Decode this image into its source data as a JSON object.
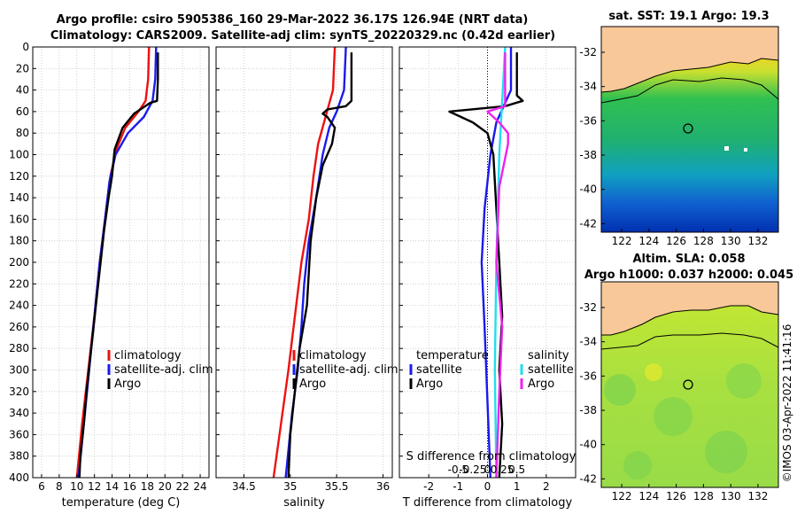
{
  "header": {
    "line1": "Argo profile: csiro 5905386_160 29-Mar-2022 36.17S 126.94E (NRT data)",
    "line2": "Climatology: CARS2009. Satellite-adj clim: synTS_20220329.nc (0.42d earlier)"
  },
  "colors": {
    "clim": "#ee1111",
    "sat": "#1a1aee",
    "argo": "#000000",
    "sal_sat": "#22ddee",
    "sal_argo": "#ee22ee"
  },
  "legend": {
    "clim": "climatology",
    "sat": "satellite-adj. clim",
    "argo": "Argo",
    "temperature": "temperature",
    "salinity": "salinity",
    "satellite": "satellite"
  },
  "chart_data": [
    {
      "type": "line",
      "name": "temperature-profile",
      "xlabel": "temperature (deg C)",
      "ylabel": "depth",
      "xlim": [
        5,
        25
      ],
      "ylim": [
        400,
        0
      ],
      "xticks": [
        6,
        8,
        10,
        12,
        14,
        16,
        18,
        20,
        22,
        24
      ],
      "yticks": [
        0,
        20,
        40,
        60,
        80,
        100,
        120,
        140,
        160,
        180,
        200,
        220,
        240,
        260,
        280,
        300,
        320,
        340,
        360,
        380,
        400
      ],
      "series": [
        {
          "name": "climatology",
          "points": [
            [
              18.2,
              0
            ],
            [
              18.1,
              30
            ],
            [
              17.8,
              50
            ],
            [
              17.0,
              60
            ],
            [
              15.5,
              75
            ],
            [
              14.5,
              95
            ],
            [
              13.8,
              120
            ],
            [
              13.2,
              160
            ],
            [
              12.6,
              200
            ],
            [
              12.0,
              250
            ],
            [
              11.3,
              300
            ],
            [
              10.6,
              350
            ],
            [
              10.0,
              400
            ]
          ]
        },
        {
          "name": "satellite-adj. clim",
          "points": [
            [
              19.0,
              0
            ],
            [
              18.9,
              30
            ],
            [
              18.6,
              50
            ],
            [
              17.6,
              65
            ],
            [
              15.8,
              80
            ],
            [
              14.4,
              100
            ],
            [
              13.7,
              125
            ],
            [
              13.2,
              160
            ],
            [
              12.6,
              200
            ],
            [
              12.0,
              250
            ],
            [
              11.4,
              300
            ],
            [
              10.8,
              350
            ],
            [
              10.2,
              400
            ]
          ]
        },
        {
          "name": "Argo",
          "points": [
            [
              19.2,
              5
            ],
            [
              19.2,
              30
            ],
            [
              19.1,
              50
            ],
            [
              18.3,
              52
            ],
            [
              16.5,
              62
            ],
            [
              15.2,
              75
            ],
            [
              14.3,
              95
            ],
            [
              14.0,
              120
            ],
            [
              13.6,
              140
            ],
            [
              13.1,
              170
            ],
            [
              12.7,
              200
            ],
            [
              12.3,
              230
            ],
            [
              11.9,
              260
            ],
            [
              11.5,
              290
            ],
            [
              11.1,
              320
            ],
            [
              10.8,
              350
            ],
            [
              10.4,
              380
            ],
            [
              10.3,
              400
            ]
          ]
        }
      ]
    },
    {
      "type": "line",
      "name": "salinity-profile",
      "xlabel": "salinity",
      "xlim": [
        34.2,
        36.1
      ],
      "ylim": [
        400,
        0
      ],
      "xticks": [
        34.5,
        35,
        35.5,
        36
      ],
      "xticklabels": [
        "34.5",
        "35",
        "35.5",
        "36"
      ],
      "series": [
        {
          "name": "climatology",
          "points": [
            [
              35.48,
              0
            ],
            [
              35.46,
              40
            ],
            [
              35.38,
              65
            ],
            [
              35.3,
              90
            ],
            [
              35.25,
              120
            ],
            [
              35.2,
              160
            ],
            [
              35.12,
              200
            ],
            [
              35.05,
              250
            ],
            [
              34.98,
              300
            ],
            [
              34.9,
              350
            ],
            [
              34.82,
              400
            ]
          ]
        },
        {
          "name": "satellite-adj. clim",
          "points": [
            [
              35.6,
              0
            ],
            [
              35.58,
              40
            ],
            [
              35.5,
              60
            ],
            [
              35.42,
              75
            ],
            [
              35.35,
              100
            ],
            [
              35.28,
              140
            ],
            [
              35.2,
              180
            ],
            [
              35.15,
              220
            ],
            [
              35.12,
              260
            ],
            [
              35.08,
              300
            ],
            [
              35.02,
              340
            ],
            [
              34.95,
              400
            ]
          ]
        },
        {
          "name": "Argo",
          "points": [
            [
              35.66,
              5
            ],
            [
              35.66,
              50
            ],
            [
              35.6,
              55
            ],
            [
              35.4,
              58
            ],
            [
              35.35,
              62
            ],
            [
              35.4,
              65
            ],
            [
              35.48,
              75
            ],
            [
              35.45,
              90
            ],
            [
              35.35,
              110
            ],
            [
              35.28,
              140
            ],
            [
              35.22,
              180
            ],
            [
              35.2,
              210
            ],
            [
              35.18,
              240
            ],
            [
              35.1,
              280
            ],
            [
              35.05,
              320
            ],
            [
              35.0,
              360
            ],
            [
              34.98,
              400
            ]
          ]
        }
      ]
    },
    {
      "type": "line",
      "name": "difference-from-climatology",
      "xlabel": "T difference from climatology",
      "xlabel_top": "S difference from climatology",
      "xlim": [
        -3,
        3
      ],
      "ylim": [
        400,
        0
      ],
      "xticks": [
        -2,
        -1,
        0,
        1,
        2
      ],
      "xtick_labels_top": [
        "-0.5",
        "-0.25",
        "0",
        "0.25",
        "0.5"
      ],
      "series": [
        {
          "name": "temperature satellite",
          "points": [
            [
              0.8,
              0
            ],
            [
              0.8,
              40
            ],
            [
              0.3,
              70
            ],
            [
              0.1,
              100
            ],
            [
              -0.1,
              150
            ],
            [
              -0.2,
              200
            ],
            [
              -0.1,
              260
            ],
            [
              0.0,
              330
            ],
            [
              0.1,
              400
            ]
          ]
        },
        {
          "name": "temperature Argo",
          "points": [
            [
              1.0,
              5
            ],
            [
              1.0,
              45
            ],
            [
              1.2,
              50
            ],
            [
              0.6,
              55
            ],
            [
              -1.3,
              60
            ],
            [
              -0.5,
              70
            ],
            [
              0.0,
              80
            ],
            [
              0.2,
              100
            ],
            [
              0.3,
              150
            ],
            [
              0.5,
              250
            ],
            [
              0.4,
              300
            ],
            [
              0.5,
              350
            ],
            [
              0.4,
              400
            ]
          ]
        },
        {
          "name": "salinity satellite",
          "points": [
            [
              0.6,
              0
            ],
            [
              0.5,
              50
            ],
            [
              0.4,
              100
            ],
            [
              0.3,
              200
            ],
            [
              0.25,
              300
            ],
            [
              0.3,
              400
            ]
          ]
        },
        {
          "name": "salinity Argo",
          "points": [
            [
              0.6,
              5
            ],
            [
              0.6,
              55
            ],
            [
              0.0,
              60
            ],
            [
              0.4,
              70
            ],
            [
              0.7,
              80
            ],
            [
              0.7,
              90
            ],
            [
              0.4,
              130
            ],
            [
              0.3,
              200
            ],
            [
              0.5,
              260
            ],
            [
              0.4,
              320
            ],
            [
              0.3,
              400
            ]
          ]
        }
      ]
    }
  ],
  "maps": [
    {
      "title": "sat. SST: 19.1 Argo: 19.3",
      "subtitle": "",
      "xticks": [
        122,
        124,
        126,
        128,
        130,
        132
      ],
      "yticks": [
        -32,
        -34,
        -36,
        -38,
        -40,
        -42
      ],
      "xlim": [
        120.5,
        133.5
      ],
      "ylim": [
        -42.5,
        -30.5
      ],
      "marker": [
        126.94,
        -36.17
      ]
    },
    {
      "title": "Altim. SLA: 0.058",
      "subtitle": "Argo h1000: 0.037 h2000: 0.045",
      "xticks": [
        122,
        124,
        126,
        128,
        130,
        132
      ],
      "yticks": [
        -32,
        -34,
        -36,
        -38,
        -40,
        -42
      ],
      "xlim": [
        120.5,
        133.5
      ],
      "ylim": [
        -42.5,
        -30.5
      ],
      "marker": [
        126.94,
        -36.17
      ]
    }
  ],
  "stamp": "©IMOS 03-Apr-2022 11:41:16"
}
